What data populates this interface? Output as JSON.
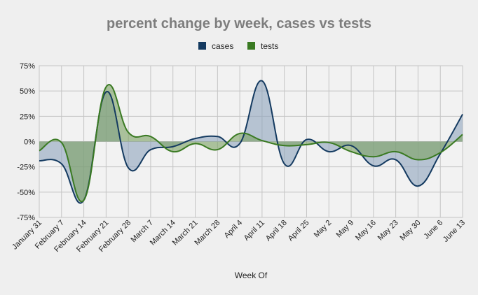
{
  "chart_data": {
    "type": "line",
    "title": "percent change by week, cases vs tests",
    "xlabel": "Week Of",
    "ylabel": "",
    "ylim": [
      -75,
      75
    ],
    "y_ticks": [
      75,
      50,
      25,
      0,
      -25,
      -50,
      -75
    ],
    "y_tick_labels": [
      "75%",
      "50%",
      "25%",
      "0%",
      "-25%",
      "-50%",
      "-75%"
    ],
    "categories": [
      "January 31",
      "February 7",
      "February 14",
      "February 21",
      "February 28",
      "March 7",
      "March 14",
      "March 21",
      "March 28",
      "April 4",
      "April 11",
      "April 18",
      "April 25",
      "May 2",
      "May 9",
      "May 16",
      "May 23",
      "May 30",
      "June 6",
      "June 13"
    ],
    "series": [
      {
        "name": "cases",
        "color": "#143a60",
        "fill": "#8ea4bc",
        "values": [
          -19,
          -22,
          -58,
          49,
          -26,
          -8,
          -5,
          3,
          5,
          -2,
          60,
          -22,
          2,
          -10,
          -4,
          -24,
          -18,
          -44,
          -12,
          27
        ]
      },
      {
        "name": "tests",
        "color": "#3a7a22",
        "fill": "#7aa060",
        "values": [
          -9,
          -1,
          -58,
          54,
          9,
          5,
          -10,
          -2,
          -8,
          8,
          1,
          -4,
          -3,
          -1,
          -10,
          -15,
          -10,
          -18,
          -11,
          7
        ]
      }
    ],
    "legend_position": "top-center",
    "grid": true
  }
}
